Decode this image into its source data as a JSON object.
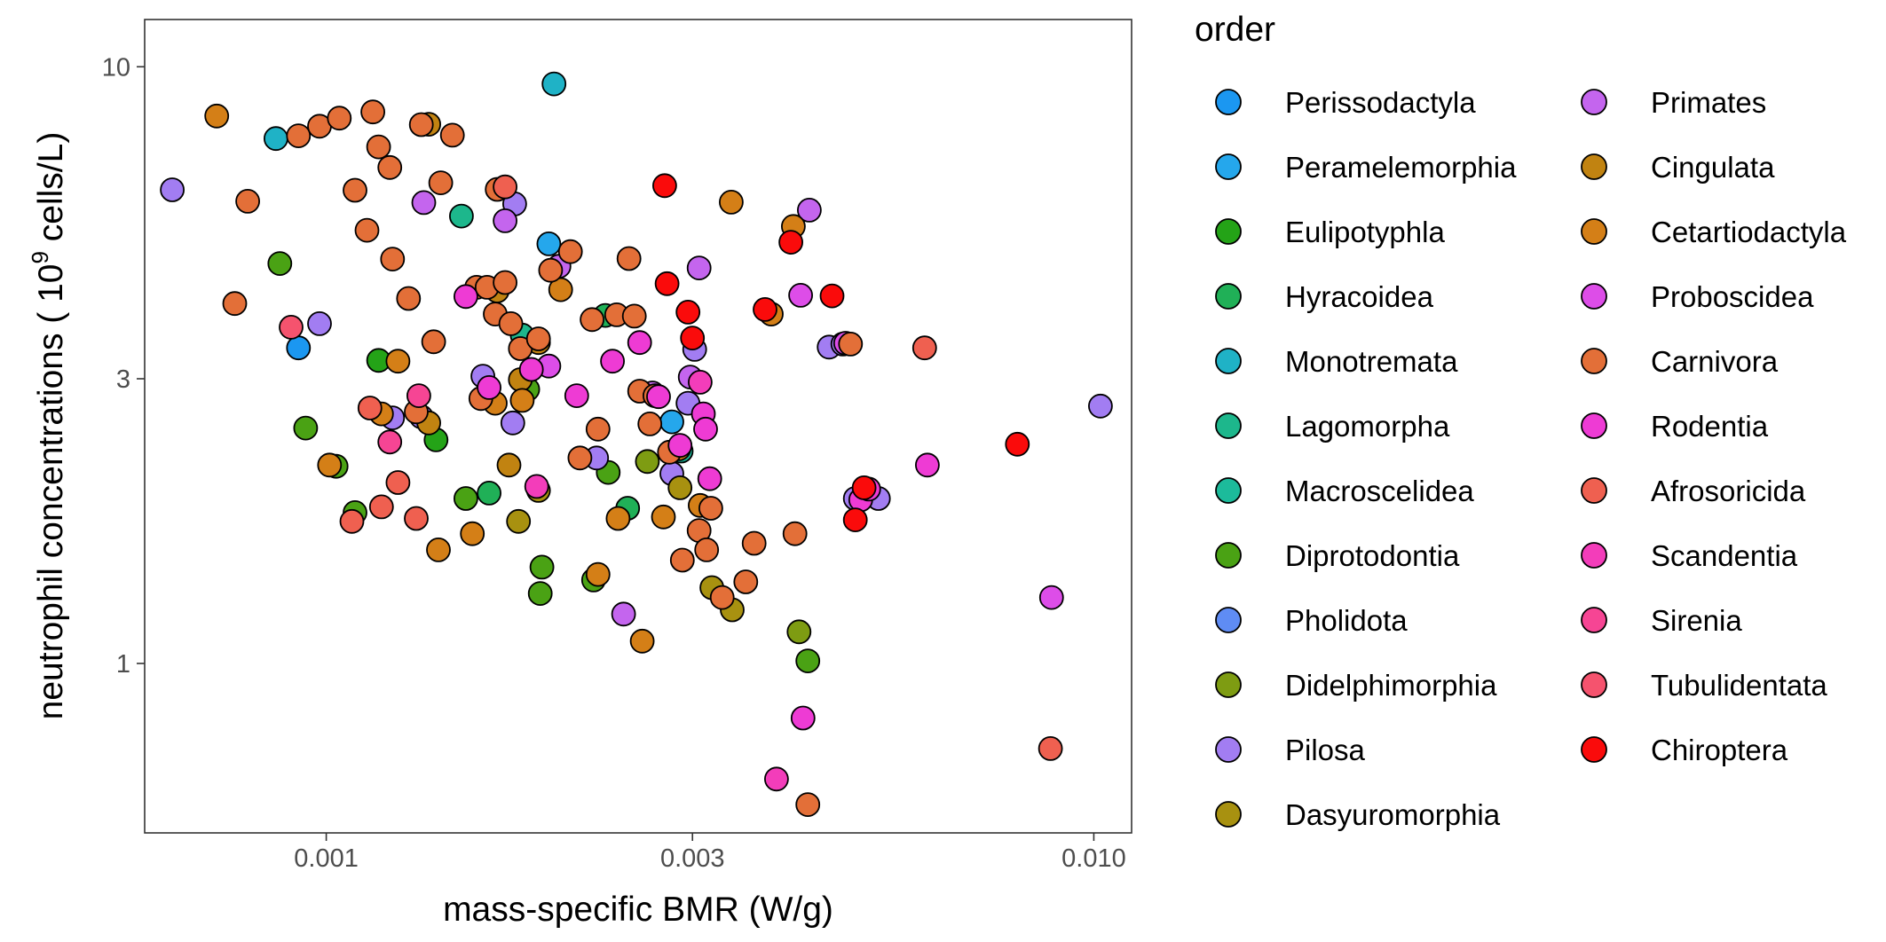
{
  "chart_data": {
    "type": "scatter",
    "title": "",
    "xlabel": "mass-specific BMR (W/g)",
    "ylabel_prefix": "neutrophil concentrations ( 10",
    "ylabel_sup": "9",
    "ylabel_suffix": " cells/L)",
    "x_scale": "log",
    "y_scale": "log",
    "xlim": [
      0.00058,
      0.0112
    ],
    "ylim": [
      0.52,
      12.0
    ],
    "x_ticks": [
      {
        "value": 0.001,
        "label": "0.001"
      },
      {
        "value": 0.003,
        "label": "0.003"
      },
      {
        "value": 0.01,
        "label": "0.010"
      }
    ],
    "y_ticks": [
      {
        "value": 1,
        "label": "1"
      },
      {
        "value": 3,
        "label": "3"
      },
      {
        "value": 10,
        "label": "10"
      }
    ],
    "grid": false,
    "legend": {
      "title": "order",
      "placement": "right",
      "columns": 2,
      "entries": [
        {
          "name": "Perissodactyla",
          "color": "#1b97f1"
        },
        {
          "name": "Peramelemorphia",
          "color": "#25a7ec"
        },
        {
          "name": "Eulipotyphla",
          "color": "#24a317"
        },
        {
          "name": "Hyracoidea",
          "color": "#20b057"
        },
        {
          "name": "Monotremata",
          "color": "#1fb2c6"
        },
        {
          "name": "Lagomorpha",
          "color": "#1db78c"
        },
        {
          "name": "Macroscelidea",
          "color": "#1cbb9b"
        },
        {
          "name": "Diprotodontia",
          "color": "#4aa214"
        },
        {
          "name": "Pholidota",
          "color": "#5f8cf4"
        },
        {
          "name": "Didelphimorphia",
          "color": "#7e9c12"
        },
        {
          "name": "Pilosa",
          "color": "#a27df2"
        },
        {
          "name": "Dasyuromorphia",
          "color": "#a89110"
        },
        {
          "name": "Primates",
          "color": "#c465ee"
        },
        {
          "name": "Cingulata",
          "color": "#c18311"
        },
        {
          "name": "Cetartiodactyla",
          "color": "#d47f17"
        },
        {
          "name": "Proboscidea",
          "color": "#dd4de8"
        },
        {
          "name": "Carnivora",
          "color": "#e36f38"
        },
        {
          "name": "Rodentia",
          "color": "#ee3bd4"
        },
        {
          "name": "Afrosoricida",
          "color": "#ef6050"
        },
        {
          "name": "Scandentia",
          "color": "#f33dba"
        },
        {
          "name": "Sirenia",
          "color": "#f64594"
        },
        {
          "name": "Tubulidentata",
          "color": "#f5536e"
        },
        {
          "name": "Chiroptera",
          "color": "#fa0b0b"
        }
      ]
    },
    "series": [
      {
        "order": "Perissodactyla",
        "points": [
          [
            0.00092,
            3.38
          ]
        ]
      },
      {
        "order": "Peramelemorphia",
        "points": [
          [
            0.00195,
            5.05
          ],
          [
            0.00282,
            2.54
          ]
        ]
      },
      {
        "order": "Eulipotyphla",
        "points": [
          [
            0.00117,
            3.22
          ],
          [
            0.00139,
            2.37
          ]
        ]
      },
      {
        "order": "Hyracoidea",
        "points": [
          [
            0.00163,
            1.93
          ],
          [
            0.00231,
            3.83
          ],
          [
            0.00247,
            1.82
          ]
        ]
      },
      {
        "order": "Monotremata",
        "points": [
          [
            0.00086,
            7.58
          ],
          [
            0.00198,
            9.36
          ]
        ]
      },
      {
        "order": "Lagomorpha",
        "points": [
          [
            0.0015,
            5.62
          ],
          [
            0.0018,
            3.55
          ]
        ]
      },
      {
        "order": "Macroscelidea",
        "points": [
          [
            0.0029,
            2.27
          ]
        ]
      },
      {
        "order": "Diprotodontia",
        "points": [
          [
            0.00087,
            4.68
          ],
          [
            0.00094,
            2.48
          ],
          [
            0.00103,
            2.14
          ],
          [
            0.00109,
            1.79
          ],
          [
            0.00152,
            1.89
          ],
          [
            0.00183,
            2.88
          ],
          [
            0.0019,
            1.31
          ],
          [
            0.00191,
            1.45
          ],
          [
            0.00223,
            1.38
          ],
          [
            0.00233,
            2.09
          ],
          [
            0.00424,
            1.01
          ]
        ]
      },
      {
        "order": "Pholidota",
        "points": []
      },
      {
        "order": "Didelphimorphia",
        "points": [
          [
            0.00262,
            2.18
          ],
          [
            0.00413,
            1.13
          ]
        ]
      },
      {
        "order": "Pilosa",
        "points": [
          [
            0.00063,
            6.22
          ],
          [
            0.00098,
            3.71
          ],
          [
            0.00122,
            2.58
          ],
          [
            0.00133,
            2.59
          ],
          [
            0.0016,
            3.03
          ],
          [
            0.00175,
            2.53
          ],
          [
            0.00176,
            5.89
          ],
          [
            0.00225,
            2.21
          ],
          [
            0.00282,
            2.08
          ],
          [
            0.00296,
            2.73
          ],
          [
            0.00302,
            3.36
          ],
          [
            0.00452,
            3.39
          ],
          [
            0.00471,
            3.43
          ],
          [
            0.00489,
            1.89
          ],
          [
            0.00524,
            1.89
          ],
          [
            0.0102,
            2.7
          ]
        ]
      },
      {
        "order": "Dasyuromorphia",
        "points": [
          [
            0.00178,
            1.73
          ],
          [
            0.00189,
            1.95
          ],
          [
            0.00289,
            1.97
          ],
          [
            0.00318,
            1.34
          ],
          [
            0.00338,
            1.23
          ]
        ]
      },
      {
        "order": "Primates",
        "points": [
          [
            0.00134,
            5.92
          ],
          [
            0.00171,
            5.52
          ],
          [
            0.00201,
            4.63
          ],
          [
            0.00244,
            1.21
          ],
          [
            0.00266,
            2.84
          ],
          [
            0.00298,
            3.02
          ],
          [
            0.00306,
            4.6
          ],
          [
            0.00426,
            5.75
          ]
        ]
      },
      {
        "order": "Cingulata",
        "points": [
          [
            0.00136,
            8.01
          ],
          [
            0.00136,
            2.53
          ],
          [
            0.00167,
            4.21
          ],
          [
            0.00173,
            2.15
          ],
          [
            0.00179,
            2.99
          ],
          [
            0.00189,
            3.45
          ]
        ]
      },
      {
        "order": "Cetartiodactyla",
        "points": [
          [
            0.00072,
            8.27
          ],
          [
            0.00101,
            2.15
          ],
          [
            0.00118,
            2.62
          ],
          [
            0.00124,
            3.21
          ],
          [
            0.0014,
            1.55
          ],
          [
            0.00155,
            1.65
          ],
          [
            0.00166,
            2.73
          ],
          [
            0.0018,
            2.76
          ],
          [
            0.00202,
            4.23
          ],
          [
            0.00226,
            1.41
          ],
          [
            0.0024,
            1.75
          ],
          [
            0.00258,
            1.09
          ],
          [
            0.00275,
            1.76
          ],
          [
            0.00288,
            2.29
          ],
          [
            0.00307,
            1.84
          ],
          [
            0.00337,
            5.93
          ],
          [
            0.0038,
            3.85
          ],
          [
            0.00406,
            5.4
          ]
        ]
      },
      {
        "order": "Proboscidea",
        "points": [
          [
            0.00195,
            3.15
          ],
          [
            0.00415,
            4.14
          ],
          [
            0.00475,
            3.44
          ],
          [
            0.00881,
            1.29
          ]
        ]
      },
      {
        "order": "Carnivora",
        "points": [
          [
            0.00076,
            4.01
          ],
          [
            0.00079,
            5.95
          ],
          [
            0.00092,
            7.66
          ],
          [
            0.00098,
            7.95
          ],
          [
            0.00104,
            8.2
          ],
          [
            0.00109,
            6.21
          ],
          [
            0.00113,
            5.32
          ],
          [
            0.00115,
            8.4
          ],
          [
            0.00117,
            7.34
          ],
          [
            0.00121,
            6.78
          ],
          [
            0.00122,
            4.76
          ],
          [
            0.00128,
            4.09
          ],
          [
            0.00131,
            2.64
          ],
          [
            0.00133,
            8.0
          ],
          [
            0.00138,
            3.46
          ],
          [
            0.00141,
            6.39
          ],
          [
            0.00146,
            7.68
          ],
          [
            0.00157,
            4.27
          ],
          [
            0.00159,
            2.78
          ],
          [
            0.00162,
            4.27
          ],
          [
            0.00166,
            3.85
          ],
          [
            0.00167,
            6.23
          ],
          [
            0.00171,
            4.35
          ],
          [
            0.00174,
            3.71
          ],
          [
            0.00179,
            3.37
          ],
          [
            0.00189,
            3.5
          ],
          [
            0.00196,
            4.56
          ],
          [
            0.00208,
            4.9
          ],
          [
            0.00214,
            2.21
          ],
          [
            0.00222,
            3.77
          ],
          [
            0.00226,
            2.47
          ],
          [
            0.00239,
            3.84
          ],
          [
            0.00248,
            4.77
          ],
          [
            0.00252,
            3.82
          ],
          [
            0.00256,
            2.86
          ],
          [
            0.00264,
            2.52
          ],
          [
            0.00268,
            2.81
          ],
          [
            0.0028,
            2.26
          ],
          [
            0.00291,
            1.49
          ],
          [
            0.00306,
            1.67
          ],
          [
            0.00313,
            1.55
          ],
          [
            0.00317,
            1.82
          ],
          [
            0.00328,
            1.29
          ],
          [
            0.00352,
            1.37
          ],
          [
            0.00361,
            1.59
          ],
          [
            0.00408,
            1.65
          ],
          [
            0.00424,
            0.58
          ],
          [
            0.00482,
            3.43
          ]
        ]
      },
      {
        "order": "Rodentia",
        "points": [
          [
            0.00152,
            4.12
          ],
          [
            0.00163,
            2.9
          ],
          [
            0.00185,
            3.11
          ],
          [
            0.00212,
            2.81
          ],
          [
            0.00236,
            3.21
          ],
          [
            0.00256,
            3.45
          ],
          [
            0.00271,
            2.8
          ],
          [
            0.00289,
            2.32
          ],
          [
            0.0031,
            2.62
          ],
          [
            0.00312,
            2.47
          ],
          [
            0.00316,
            2.04
          ],
          [
            0.00418,
            0.81
          ],
          [
            0.00497,
            1.88
          ],
          [
            0.00509,
            1.96
          ],
          [
            0.00607,
            2.15
          ]
        ]
      },
      {
        "order": "Afrosoricida",
        "points": [
          [
            0.00108,
            1.73
          ],
          [
            0.00114,
            2.68
          ],
          [
            0.00118,
            1.83
          ],
          [
            0.00124,
            2.01
          ],
          [
            0.00131,
            1.75
          ],
          [
            0.00171,
            6.29
          ],
          [
            0.00602,
            3.38
          ],
          [
            0.00878,
            0.72
          ]
        ]
      },
      {
        "order": "Scandentia",
        "points": [
          [
            0.00188,
            1.98
          ],
          [
            0.00307,
            2.96
          ],
          [
            0.00386,
            0.64
          ]
        ]
      },
      {
        "order": "Sirenia",
        "points": [
          [
            0.00121,
            2.35
          ],
          [
            0.00132,
            2.81
          ]
        ]
      },
      {
        "order": "Tubulidentata",
        "points": [
          [
            0.0009,
            3.66
          ]
        ]
      },
      {
        "order": "Chiroptera",
        "points": [
          [
            0.00276,
            6.32
          ],
          [
            0.00278,
            4.33
          ],
          [
            0.00296,
            3.88
          ],
          [
            0.003,
            3.51
          ],
          [
            0.00373,
            3.92
          ],
          [
            0.00403,
            5.08
          ],
          [
            0.00456,
            4.13
          ],
          [
            0.00489,
            1.74
          ],
          [
            0.00502,
            1.97
          ],
          [
            0.00795,
            2.33
          ]
        ]
      }
    ]
  }
}
